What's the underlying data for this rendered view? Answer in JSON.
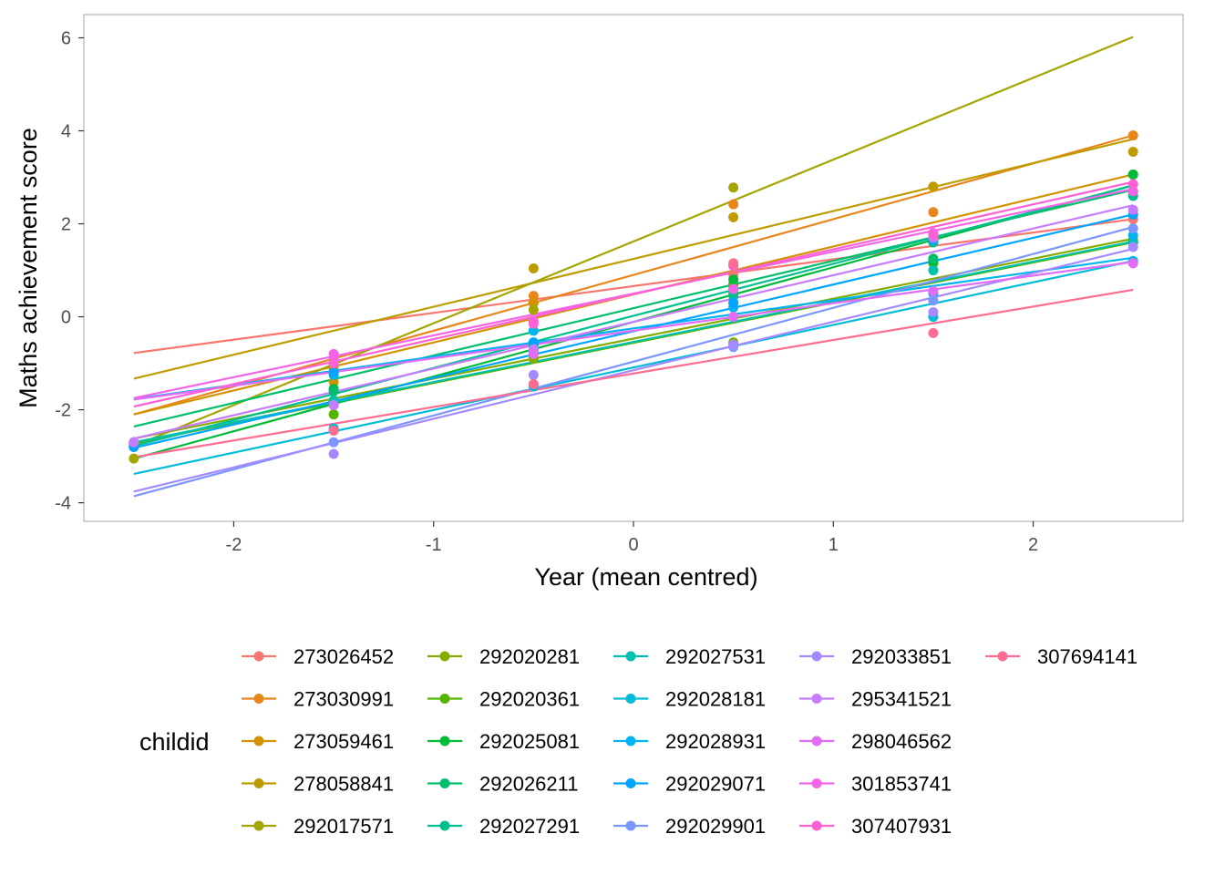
{
  "chart_data": {
    "type": "line",
    "xlabel": "Year (mean centred)",
    "ylabel": "Maths achievement score",
    "xlim": [
      -2.75,
      2.75
    ],
    "ylim": [
      -4.4,
      6.5
    ],
    "x_ticks": [
      -2,
      -1,
      0,
      1,
      2
    ],
    "x_tick_labels": [
      "-2",
      "-1",
      "0",
      "1",
      "2"
    ],
    "y_ticks": [
      -4,
      -2,
      0,
      2,
      4,
      6
    ],
    "y_tick_labels": [
      "-4",
      "-2",
      "0",
      "2",
      "4",
      "6"
    ],
    "grid": false,
    "legend": {
      "title": "childid",
      "position": "bottom",
      "columns": 5
    },
    "x": [
      -2.5,
      -1.5,
      -0.5,
      0.5,
      1.5,
      2.5
    ],
    "series": [
      {
        "name": "273026452",
        "color": "#F8766D",
        "fit": [
          -0.78,
          2.1
        ],
        "points": [
          null,
          -1.0,
          0.3,
          0.9,
          1.6,
          2.1
        ]
      },
      {
        "name": "273030991",
        "color": "#E7861B",
        "fit": [
          -2.1,
          3.9
        ],
        "points": [
          null,
          -1.2,
          0.45,
          2.42,
          2.25,
          3.9
        ]
      },
      {
        "name": "273059461",
        "color": "#D39200",
        "fit": [
          -2.1,
          3.06
        ],
        "points": [
          null,
          -1.4,
          0.3,
          1.1,
          1.8,
          3.06
        ]
      },
      {
        "name": "278058841",
        "color": "#BE9C00",
        "fit": [
          -1.33,
          3.82
        ],
        "points": [
          null,
          -1.1,
          1.04,
          2.14,
          2.8,
          3.55
        ]
      },
      {
        "name": "292017571",
        "color": "#A3A500",
        "fit": [
          -2.78,
          6.02
        ],
        "points": [
          -3.05,
          -1.9,
          0.15,
          2.78,
          null,
          null
        ]
      },
      {
        "name": "292020281",
        "color": "#84AD00",
        "fit": [
          -2.62,
          1.68
        ],
        "points": [
          -2.7,
          -1.8,
          -0.9,
          -0.55,
          1.2,
          1.65
        ]
      },
      {
        "name": "292020361",
        "color": "#52B500",
        "fit": [
          -2.72,
          1.6
        ],
        "points": [
          -2.7,
          -2.1,
          -0.8,
          0.7,
          1.15,
          1.6
        ]
      },
      {
        "name": "292025081",
        "color": "#00BA38",
        "fit": [
          -3.05,
          2.83
        ],
        "points": [
          -2.75,
          -1.55,
          -0.7,
          0.8,
          1.2,
          3.06
        ]
      },
      {
        "name": "292026211",
        "color": "#00BE6C",
        "fit": [
          -2.36,
          2.73
        ],
        "points": [
          null,
          -1.6,
          -0.6,
          0.5,
          1.25,
          2.7
        ]
      },
      {
        "name": "292027291",
        "color": "#00C08E",
        "fit": [
          -2.78,
          2.82
        ],
        "points": [
          -2.8,
          -1.9,
          -0.7,
          0.45,
          1.6,
          2.6
        ]
      },
      {
        "name": "292027531",
        "color": "#00C0AE",
        "fit": [
          -2.7,
          1.62
        ],
        "points": [
          -2.7,
          -1.8,
          -0.75,
          0.3,
          1.0,
          1.6
        ]
      },
      {
        "name": "292028181",
        "color": "#00BCD8",
        "fit": [
          -3.38,
          1.2
        ],
        "points": [
          null,
          -2.4,
          -1.5,
          -0.6,
          0.0,
          1.2
        ]
      },
      {
        "name": "292028931",
        "color": "#00B4F0",
        "fit": [
          -1.77,
          1.27
        ],
        "points": [
          null,
          -1.25,
          -0.3,
          0.2,
          0.5,
          1.75
        ]
      },
      {
        "name": "292029071",
        "color": "#00A5FF",
        "fit": [
          -2.82,
          2.2
        ],
        "points": [
          -2.8,
          -1.2,
          -0.55,
          0.3,
          1.65,
          2.2
        ]
      },
      {
        "name": "292029901",
        "color": "#7C96FF",
        "fit": [
          -3.86,
          1.93
        ],
        "points": [
          null,
          -2.7,
          -1.45,
          -0.65,
          0.35,
          1.9
        ]
      },
      {
        "name": "292033851",
        "color": "#A58AFF",
        "fit": [
          -3.76,
          1.46
        ],
        "points": [
          -2.7,
          -2.95,
          -1.25,
          -0.6,
          0.1,
          1.5
        ]
      },
      {
        "name": "295341521",
        "color": "#C77CFF",
        "fit": [
          -2.62,
          2.4
        ],
        "points": [
          -2.7,
          -1.9,
          -0.7,
          0.6,
          1.7,
          2.3
        ]
      },
      {
        "name": "298046562",
        "color": "#E16CF6",
        "fit": [
          -1.78,
          1.18
        ],
        "points": [
          null,
          -0.9,
          -0.8,
          0.0,
          0.55,
          1.15
        ]
      },
      {
        "name": "301853741",
        "color": "#F365E6",
        "fit": [
          -1.75,
          2.75
        ],
        "points": [
          null,
          -0.8,
          -0.1,
          0.6,
          1.8,
          2.7
        ]
      },
      {
        "name": "307407931",
        "color": "#FC61D5",
        "fit": [
          -1.93,
          2.9
        ],
        "points": [
          null,
          -1.0,
          -0.15,
          1.1,
          1.75,
          2.85
        ]
      },
      {
        "name": "307694141",
        "color": "#FF6C91",
        "fit": [
          -3.02,
          0.58
        ],
        "points": [
          null,
          -2.45,
          -1.45,
          1.15,
          -0.35,
          null
        ]
      }
    ]
  }
}
